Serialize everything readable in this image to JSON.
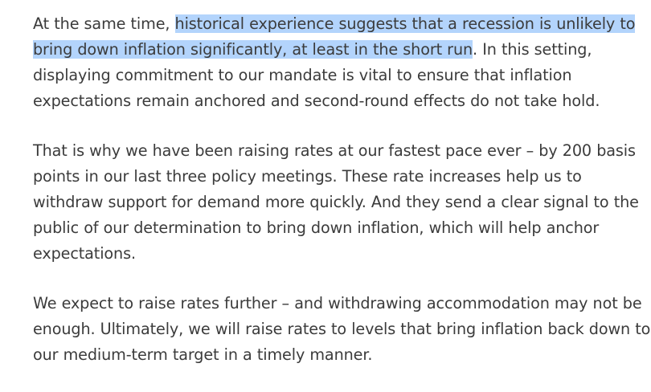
{
  "article": {
    "paragraphs": [
      {
        "before": "At the same time, ",
        "selected": "historical experience suggests that a recession is unlikely to bring down inflation significantly, at least in the short run",
        "after": ". In this setting, displaying commitment to our mandate is vital to ensure that inflation expectations remain anchored and second-round effects do not take hold."
      },
      {
        "text": "That is why we have been raising rates at our fastest pace ever – by 200 basis points in our last three policy meetings. These rate increases help us to withdraw support for demand more quickly. And they send a clear signal to the public of our determination to bring down inflation, which will help anchor expectations."
      },
      {
        "text": "We expect to raise rates further – and withdrawing accommodation may not be enough. Ultimately, we will raise rates to levels that bring inflation back down to our medium-term target in a timely manner."
      }
    ]
  },
  "colors": {
    "text": "#3b3b3b",
    "selection": "#b3d4fc",
    "background": "#ffffff"
  }
}
